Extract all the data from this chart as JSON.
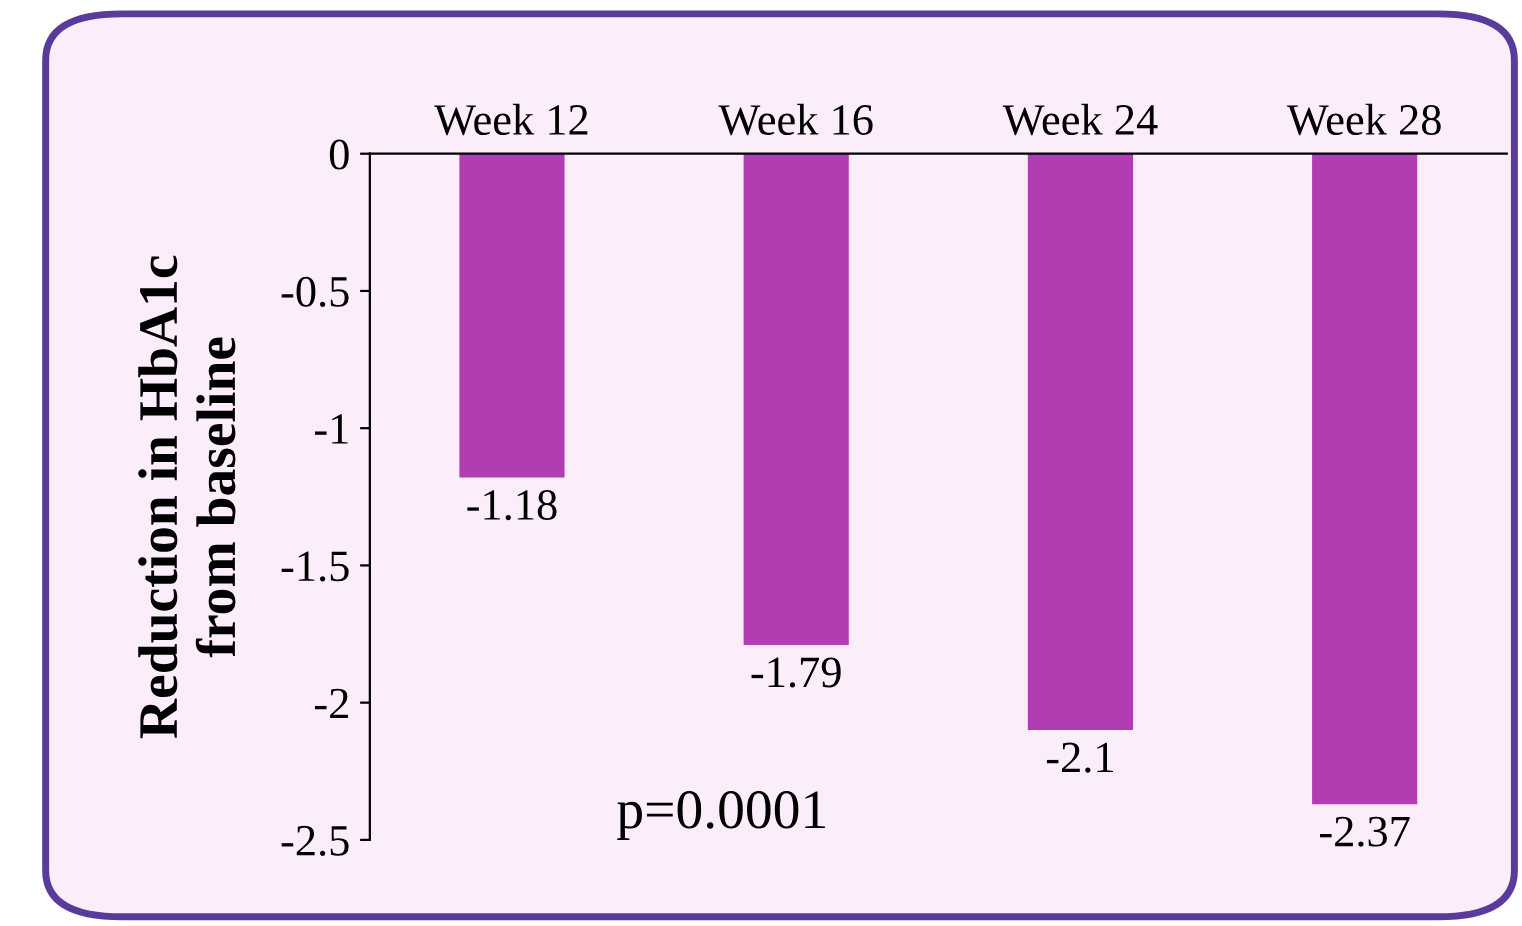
{
  "chart_data": {
    "type": "bar",
    "ylabel": "Reduction in HbA1c\nfrom baseline",
    "categories": [
      "Week 12",
      "Week 16",
      "Week 24",
      "Week 28"
    ],
    "values": [
      -1.18,
      -1.79,
      -2.1,
      -2.37
    ],
    "color": "#b23db3",
    "ylim": [
      -2.5,
      0
    ],
    "yticks": [
      0,
      -0.5,
      -1,
      -1.5,
      -2,
      -2.5
    ],
    "data_labels": true,
    "grid": false,
    "annotations": [
      "p=0.0001"
    ]
  }
}
